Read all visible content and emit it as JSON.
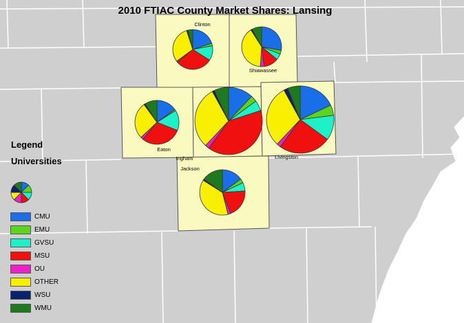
{
  "title": "2010 FTIAC County Market Shares: Lansing",
  "legend": {
    "title": "Legend",
    "subtitle": "Universities",
    "items": [
      {
        "label": "CMU",
        "color": "#1a6ee8"
      },
      {
        "label": "EMU",
        "color": "#5cd31f"
      },
      {
        "label": "GVSU",
        "color": "#1ef0c8"
      },
      {
        "label": "MSU",
        "color": "#f01010"
      },
      {
        "label": "OU",
        "color": "#f020c8"
      },
      {
        "label": "OTHER",
        "color": "#f8f000"
      },
      {
        "label": "WSU",
        "color": "#0a2070"
      },
      {
        "label": "WMU",
        "color": "#1f7a1f"
      }
    ]
  },
  "map_colors": {
    "background": "#cfcfcf",
    "county_border": "#ffffff",
    "highlight_county": "#fafac0",
    "water": "#ffffff"
  },
  "counties": [
    {
      "name": "Clinton",
      "shares": [
        20,
        2,
        12,
        30,
        1,
        30,
        1,
        4
      ]
    },
    {
      "name": "Shiawassee",
      "shares": [
        28,
        3,
        5,
        12,
        3,
        40,
        1,
        8
      ]
    },
    {
      "name": "Eaton",
      "shares": [
        15,
        1,
        15,
        30,
        2,
        27,
        1,
        9
      ]
    },
    {
      "name": "Ingham",
      "shares": [
        12,
        3,
        5,
        40,
        2,
        30,
        1,
        7
      ]
    },
    {
      "name": "Livingston",
      "shares": [
        18,
        5,
        12,
        25,
        2,
        30,
        2,
        6
      ]
    },
    {
      "name": "Jackson",
      "shares": [
        15,
        3,
        6,
        20,
        2,
        38,
        1,
        15
      ]
    }
  ]
}
